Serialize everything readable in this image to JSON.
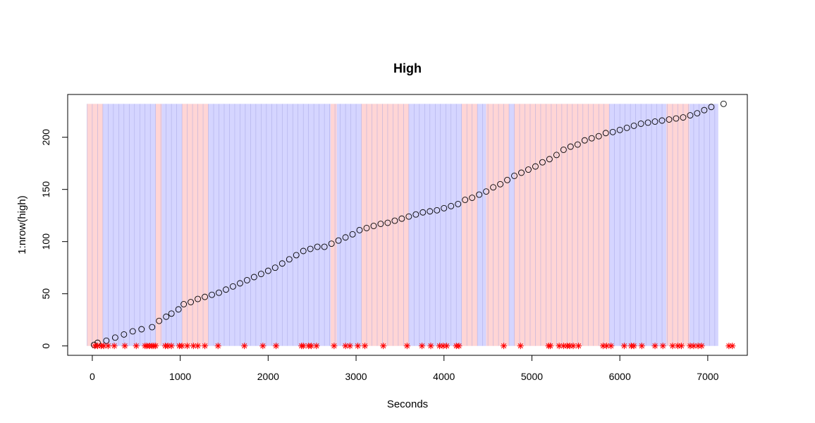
{
  "chart_data": {
    "type": "scatter",
    "title": "High",
    "xlabel": "Seconds",
    "ylabel": "1:nrow(high)",
    "xlim": [
      -280,
      7450
    ],
    "ylim": [
      -9,
      241
    ],
    "x_ticks": [
      0,
      1000,
      2000,
      3000,
      4000,
      5000,
      6000,
      7000
    ],
    "y_ticks": [
      0,
      50,
      100,
      150,
      200
    ],
    "x_tick_labels": [
      "0",
      "1000",
      "2000",
      "3000",
      "4000",
      "5000",
      "6000",
      "7000"
    ],
    "y_tick_labels": [
      "0",
      "50",
      "100",
      "150",
      "200"
    ],
    "grid": false,
    "legend": "none",
    "colors": {
      "red_band": "#ffb3b3",
      "blue_band": "#b3b3ff",
      "band_line": "#a0a0e0",
      "points": "#000000",
      "events": "#ff0000"
    },
    "shaded_regions": {
      "y_range": [
        0,
        232
      ],
      "bands": [
        {
          "start": -60,
          "end": 120,
          "color": "red"
        },
        {
          "start": 120,
          "end": 720,
          "color": "blue"
        },
        {
          "start": 720,
          "end": 790,
          "color": "red"
        },
        {
          "start": 790,
          "end": 1020,
          "color": "blue"
        },
        {
          "start": 1020,
          "end": 1320,
          "color": "red"
        },
        {
          "start": 1320,
          "end": 2710,
          "color": "blue"
        },
        {
          "start": 2710,
          "end": 2780,
          "color": "red"
        },
        {
          "start": 2780,
          "end": 3060,
          "color": "blue"
        },
        {
          "start": 3060,
          "end": 3600,
          "color": "red"
        },
        {
          "start": 3600,
          "end": 4200,
          "color": "blue"
        },
        {
          "start": 4200,
          "end": 4380,
          "color": "red"
        },
        {
          "start": 4380,
          "end": 4480,
          "color": "blue"
        },
        {
          "start": 4480,
          "end": 4740,
          "color": "red"
        },
        {
          "start": 4740,
          "end": 4800,
          "color": "blue"
        },
        {
          "start": 4800,
          "end": 5100,
          "color": "red"
        },
        {
          "start": 5100,
          "end": 5880,
          "color": "red"
        },
        {
          "start": 5880,
          "end": 6530,
          "color": "blue"
        },
        {
          "start": 6530,
          "end": 6680,
          "color": "red"
        },
        {
          "start": 6680,
          "end": 6790,
          "color": "red"
        },
        {
          "start": 6790,
          "end": 7120,
          "color": "blue"
        }
      ],
      "line_spacing": 60
    },
    "series": [
      {
        "marker": "circle",
        "points": [
          [
            20,
            1
          ],
          [
            60,
            3
          ],
          [
            160,
            5
          ],
          [
            260,
            8
          ],
          [
            360,
            11
          ],
          [
            460,
            14
          ],
          [
            560,
            16
          ],
          [
            680,
            18
          ],
          [
            760,
            24
          ],
          [
            840,
            28
          ],
          [
            900,
            31
          ],
          [
            980,
            35
          ],
          [
            1040,
            40
          ],
          [
            1120,
            42
          ],
          [
            1200,
            45
          ],
          [
            1280,
            47
          ],
          [
            1360,
            49
          ],
          [
            1440,
            51
          ],
          [
            1520,
            54
          ],
          [
            1600,
            57
          ],
          [
            1680,
            60
          ],
          [
            1760,
            63
          ],
          [
            1840,
            66
          ],
          [
            1920,
            69
          ],
          [
            2000,
            72
          ],
          [
            2080,
            75
          ],
          [
            2160,
            79
          ],
          [
            2240,
            83
          ],
          [
            2320,
            87
          ],
          [
            2400,
            91
          ],
          [
            2480,
            93
          ],
          [
            2560,
            95
          ],
          [
            2640,
            95
          ],
          [
            2720,
            98
          ],
          [
            2800,
            101
          ],
          [
            2880,
            104
          ],
          [
            2960,
            107
          ],
          [
            3040,
            111
          ],
          [
            3120,
            113
          ],
          [
            3200,
            115
          ],
          [
            3280,
            117
          ],
          [
            3360,
            118
          ],
          [
            3440,
            120
          ],
          [
            3520,
            122
          ],
          [
            3600,
            124
          ],
          [
            3680,
            126
          ],
          [
            3760,
            128
          ],
          [
            3840,
            129
          ],
          [
            3920,
            130
          ],
          [
            4000,
            132
          ],
          [
            4080,
            134
          ],
          [
            4160,
            136
          ],
          [
            4240,
            140
          ],
          [
            4320,
            142
          ],
          [
            4400,
            145
          ],
          [
            4480,
            148
          ],
          [
            4560,
            152
          ],
          [
            4640,
            155
          ],
          [
            4720,
            159
          ],
          [
            4800,
            163
          ],
          [
            4880,
            166
          ],
          [
            4960,
            169
          ],
          [
            5040,
            172
          ],
          [
            5120,
            176
          ],
          [
            5200,
            179
          ],
          [
            5280,
            183
          ],
          [
            5360,
            188
          ],
          [
            5440,
            191
          ],
          [
            5520,
            193
          ],
          [
            5600,
            197
          ],
          [
            5680,
            199
          ],
          [
            5760,
            201
          ],
          [
            5840,
            204
          ],
          [
            5920,
            205
          ],
          [
            6000,
            207
          ],
          [
            6080,
            209
          ],
          [
            6160,
            211
          ],
          [
            6240,
            213
          ],
          [
            6320,
            214
          ],
          [
            6400,
            215
          ],
          [
            6480,
            216
          ],
          [
            6560,
            217
          ],
          [
            6640,
            218
          ],
          [
            6720,
            219
          ],
          [
            6800,
            221
          ],
          [
            6880,
            223
          ],
          [
            6960,
            226
          ],
          [
            7040,
            229
          ],
          [
            7180,
            232
          ]
        ]
      },
      {
        "marker": "asterisk",
        "points": [
          [
            30,
            0
          ],
          [
            60,
            0
          ],
          [
            100,
            0
          ],
          [
            130,
            0
          ],
          [
            180,
            0
          ],
          [
            250,
            0
          ],
          [
            370,
            0
          ],
          [
            500,
            0
          ],
          [
            600,
            0
          ],
          [
            620,
            0
          ],
          [
            650,
            0
          ],
          [
            680,
            0
          ],
          [
            700,
            0
          ],
          [
            720,
            0
          ],
          [
            830,
            0
          ],
          [
            860,
            0
          ],
          [
            900,
            0
          ],
          [
            990,
            0
          ],
          [
            1020,
            0
          ],
          [
            1080,
            0
          ],
          [
            1150,
            0
          ],
          [
            1200,
            0
          ],
          [
            1280,
            0
          ],
          [
            1430,
            0
          ],
          [
            1730,
            0
          ],
          [
            1940,
            0
          ],
          [
            2090,
            0
          ],
          [
            2380,
            0
          ],
          [
            2400,
            0
          ],
          [
            2460,
            0
          ],
          [
            2490,
            0
          ],
          [
            2550,
            0
          ],
          [
            2750,
            0
          ],
          [
            2880,
            0
          ],
          [
            2930,
            0
          ],
          [
            3020,
            0
          ],
          [
            3100,
            0
          ],
          [
            3310,
            0
          ],
          [
            3580,
            0
          ],
          [
            3750,
            0
          ],
          [
            3850,
            0
          ],
          [
            3950,
            0
          ],
          [
            3990,
            0
          ],
          [
            4030,
            0
          ],
          [
            4140,
            0
          ],
          [
            4170,
            0
          ],
          [
            4680,
            0
          ],
          [
            4870,
            0
          ],
          [
            5190,
            0
          ],
          [
            5210,
            0
          ],
          [
            5310,
            0
          ],
          [
            5360,
            0
          ],
          [
            5400,
            0
          ],
          [
            5430,
            0
          ],
          [
            5470,
            0
          ],
          [
            5530,
            0
          ],
          [
            5810,
            0
          ],
          [
            5850,
            0
          ],
          [
            5900,
            0
          ],
          [
            6050,
            0
          ],
          [
            6130,
            0
          ],
          [
            6160,
            0
          ],
          [
            6250,
            0
          ],
          [
            6400,
            0
          ],
          [
            6490,
            0
          ],
          [
            6600,
            0
          ],
          [
            6660,
            0
          ],
          [
            6700,
            0
          ],
          [
            6800,
            0
          ],
          [
            6840,
            0
          ],
          [
            6890,
            0
          ],
          [
            6930,
            0
          ],
          [
            7240,
            0
          ],
          [
            7280,
            0
          ]
        ]
      }
    ]
  }
}
